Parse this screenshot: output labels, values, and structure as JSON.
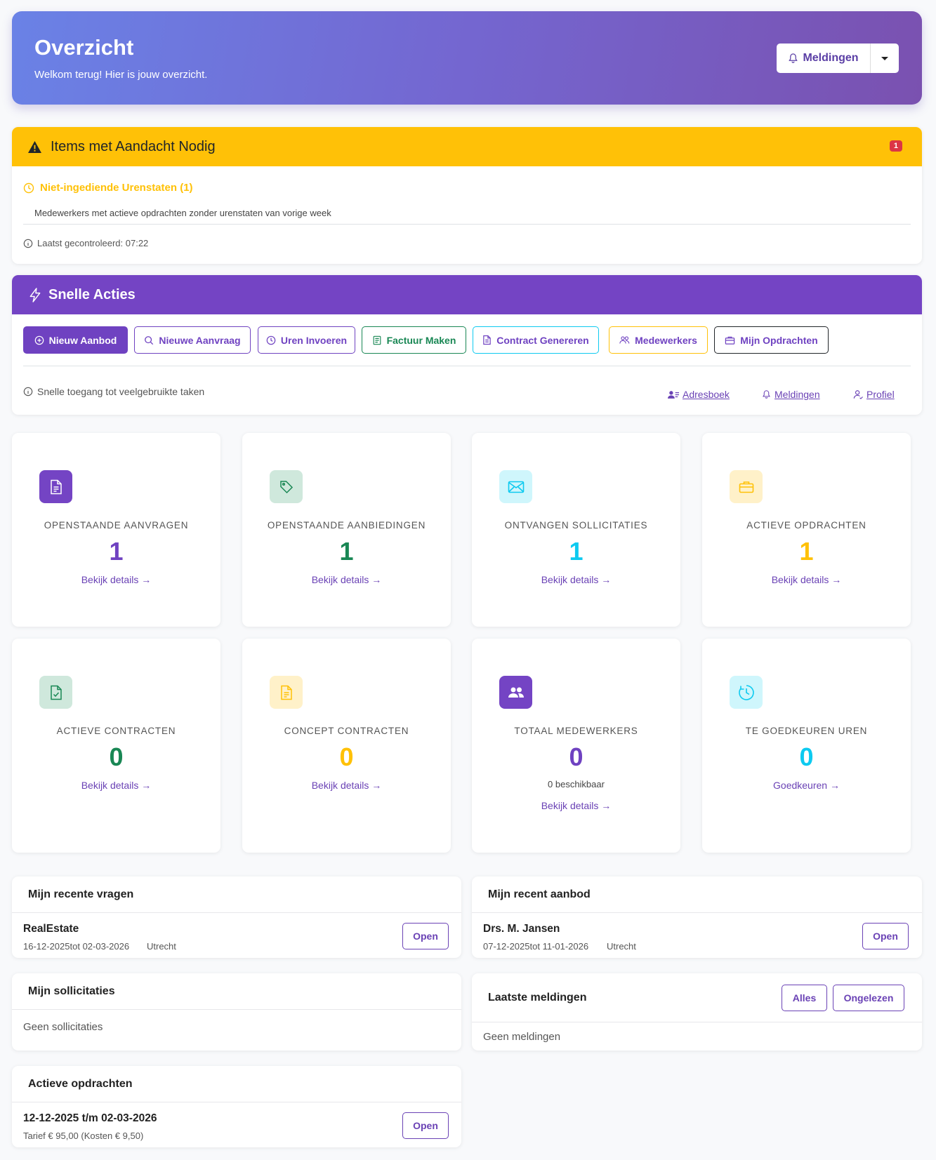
{
  "header": {
    "title": "Overzicht",
    "subtitle": "Welkom terug! Hier is jouw overzicht.",
    "notifications_label": "Meldingen"
  },
  "attention": {
    "title": "Items met Aandacht Nodig",
    "badge": "1",
    "item_title": "Niet-ingediende Urenstaten (1)",
    "item_desc": "Medewerkers met actieve opdrachten zonder urenstaten van vorige week",
    "last_checked": "Laatst gecontroleerd: 07:22"
  },
  "quick_actions": {
    "title": "Snelle Acties",
    "buttons": [
      {
        "label": "Nieuw Aanbod",
        "icon": "plus-circle-icon"
      },
      {
        "label": "Nieuwe Aanvraag",
        "icon": "search-icon"
      },
      {
        "label": "Uren Invoeren",
        "icon": "clock-icon"
      },
      {
        "label": "Factuur Maken",
        "icon": "invoice-icon"
      },
      {
        "label": "Contract Genereren",
        "icon": "document-icon"
      },
      {
        "label": "Medewerkers",
        "icon": "people-icon"
      },
      {
        "label": "Mijn Opdrachten",
        "icon": "briefcase-icon"
      }
    ],
    "hint": "Snelle toegang tot veelgebruikte taken",
    "links": [
      {
        "label": "Adresboek",
        "icon": "address-book-icon"
      },
      {
        "label": "Meldingen",
        "icon": "bell-icon"
      },
      {
        "label": "Profiel",
        "icon": "user-icon"
      }
    ]
  },
  "stats": [
    {
      "label": "OPENSTAANDE AANVRAGEN",
      "value": "1",
      "link": "Bekijk details →",
      "icon": "document-icon",
      "color": "#6f42c1"
    },
    {
      "label": "OPENSTAANDE AANBIEDINGEN",
      "value": "1",
      "link": "Bekijk details →",
      "icon": "tag-icon",
      "color": "#198754"
    },
    {
      "label": "ONTVANGEN SOLLICITATIES",
      "value": "1",
      "link": "Bekijk details →",
      "icon": "envelope-icon",
      "color": "#0dcaf0"
    },
    {
      "label": "ACTIEVE OPDRACHTEN",
      "value": "1",
      "link": "Bekijk details →",
      "icon": "briefcase-icon",
      "color": "#ffc107"
    },
    {
      "label": "ACTIEVE CONTRACTEN",
      "value": "0",
      "link": "Bekijk details →",
      "icon": "document-check-icon",
      "color": "#198754"
    },
    {
      "label": "CONCEPT CONTRACTEN",
      "value": "0",
      "link": "Bekijk details →",
      "icon": "document-text-icon",
      "color": "#ffc107"
    },
    {
      "label": "TOTAAL MEDEWERKERS",
      "value": "0",
      "extra": "0 beschikbaar",
      "link": "Bekijk details →",
      "icon": "people-icon",
      "color": "#6f42c1"
    },
    {
      "label": "TE GOEDKEUREN UREN",
      "value": "0",
      "link": "Goedkeuren →",
      "icon": "clock-icon",
      "color": "#0dcaf0"
    }
  ],
  "recent_requests": {
    "title": "Mijn recente vragen",
    "item_title": "RealEstate",
    "item_dates": "16-12-2025tot 02-03-2026",
    "item_location": "Utrecht",
    "open_label": "Open"
  },
  "recent_offers": {
    "title": "Mijn recent aanbod",
    "item_title": "Drs. M. Jansen",
    "item_dates": "07-12-2025tot 11-01-2026",
    "item_location": "Utrecht",
    "open_label": "Open"
  },
  "applications": {
    "title": "Mijn sollicitaties",
    "empty": "Geen sollicitaties"
  },
  "notifications": {
    "title": "Laatste meldingen",
    "all_label": "Alles",
    "unread_label": "Ongelezen",
    "empty": "Geen meldingen"
  },
  "active_assignments": {
    "title": "Actieve opdrachten",
    "item_title": "12-12-2025 t/m 02-03-2026",
    "item_sub": "Tarief € 95,00 (Kosten € 9,50)",
    "open_label": "Open"
  }
}
